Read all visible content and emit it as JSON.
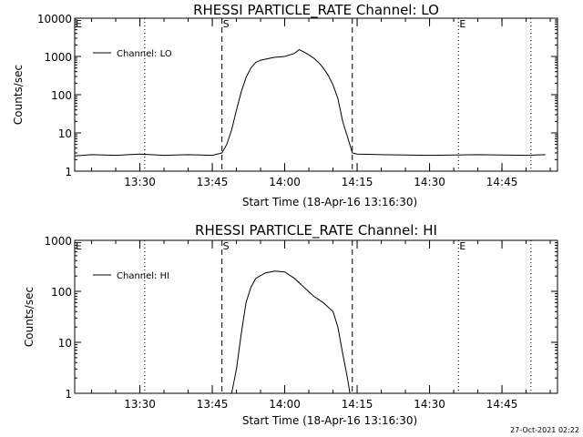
{
  "timestamp": "27-Oct-2021 02:22",
  "chart_data": [
    {
      "type": "line",
      "title": "RHESSI PARTICLE_RATE Channel: LO",
      "xlabel": "Start Time (18-Apr-16 13:16:30)",
      "ylabel": "Counts/sec",
      "legend": "Channel: LO",
      "legend_position": "top-left",
      "yscale": "log",
      "ylim": [
        1,
        10000
      ],
      "xlim": [
        "13:16:30",
        "14:56:30"
      ],
      "x_ticks": [
        {
          "t": "13:30",
          "label": "13:30"
        },
        {
          "t": "13:45",
          "label": "13:45"
        },
        {
          "t": "14:00",
          "label": "14:00"
        },
        {
          "t": "14:15",
          "label": "14:15"
        },
        {
          "t": "14:30",
          "label": "14:30"
        },
        {
          "t": "14:45",
          "label": "14:45"
        }
      ],
      "y_ticks": [
        {
          "v": 1,
          "label": "1"
        },
        {
          "v": 10,
          "label": "10"
        },
        {
          "v": 100,
          "label": "100"
        },
        {
          "v": 1000,
          "label": "1000"
        },
        {
          "v": 10000,
          "label": "10000"
        }
      ],
      "vlines": [
        {
          "t": "13:16:30",
          "style": "dotted",
          "label": "E"
        },
        {
          "t": "13:31:00",
          "style": "dotted",
          "label": ""
        },
        {
          "t": "13:47:00",
          "style": "dashed",
          "label": "S"
        },
        {
          "t": "14:14:00",
          "style": "dashed",
          "label": ""
        },
        {
          "t": "14:36:00",
          "style": "dotted",
          "label": "E"
        },
        {
          "t": "14:51:00",
          "style": "dotted",
          "label": ""
        }
      ],
      "series": [
        {
          "name": "Channel: LO",
          "times": [
            "13:16:30",
            "13:20",
            "13:25",
            "13:30",
            "13:35",
            "13:40",
            "13:45",
            "13:47",
            "13:48",
            "13:49",
            "13:50",
            "13:51",
            "13:52",
            "13:53",
            "13:54",
            "13:55",
            "13:56",
            "13:57",
            "13:58",
            "14:00",
            "14:02",
            "14:03",
            "14:04",
            "14:05",
            "14:06",
            "14:07",
            "14:08",
            "14:09",
            "14:10",
            "14:11",
            "14:12",
            "14:13",
            "14:14",
            "14:15",
            "14:20",
            "14:30",
            "14:40",
            "14:50",
            "14:54"
          ],
          "values": [
            2.5,
            2.7,
            2.6,
            2.8,
            2.6,
            2.7,
            2.6,
            3,
            5,
            12,
            40,
            120,
            280,
            500,
            700,
            800,
            850,
            900,
            950,
            1000,
            1200,
            1500,
            1300,
            1100,
            900,
            700,
            500,
            320,
            180,
            80,
            20,
            8,
            3,
            2.8,
            2.7,
            2.6,
            2.7,
            2.6,
            2.7
          ]
        }
      ]
    },
    {
      "type": "line",
      "title": "RHESSI PARTICLE_RATE Channel: HI",
      "xlabel": "Start Time (18-Apr-16 13:16:30)",
      "ylabel": "Counts/sec",
      "legend": "Channel: HI",
      "legend_position": "top-left",
      "yscale": "log",
      "ylim": [
        1,
        1000
      ],
      "xlim": [
        "13:16:30",
        "14:56:30"
      ],
      "x_ticks": [
        {
          "t": "13:30",
          "label": "13:30"
        },
        {
          "t": "13:45",
          "label": "13:45"
        },
        {
          "t": "14:00",
          "label": "14:00"
        },
        {
          "t": "14:15",
          "label": "14:15"
        },
        {
          "t": "14:30",
          "label": "14:30"
        },
        {
          "t": "14:45",
          "label": "14:45"
        }
      ],
      "y_ticks": [
        {
          "v": 1,
          "label": "1"
        },
        {
          "v": 10,
          "label": "10"
        },
        {
          "v": 100,
          "label": "100"
        },
        {
          "v": 1000,
          "label": "1000"
        }
      ],
      "vlines": [
        {
          "t": "13:16:30",
          "style": "dotted",
          "label": "E"
        },
        {
          "t": "13:31:00",
          "style": "dotted",
          "label": ""
        },
        {
          "t": "13:47:00",
          "style": "dashed",
          "label": "S"
        },
        {
          "t": "14:14:00",
          "style": "dashed",
          "label": ""
        },
        {
          "t": "14:36:00",
          "style": "dotted",
          "label": "E"
        },
        {
          "t": "14:51:00",
          "style": "dotted",
          "label": ""
        }
      ],
      "series": [
        {
          "name": "Channel: HI",
          "times": [
            "13:49",
            "13:50",
            "13:51",
            "13:52",
            "13:53",
            "13:54",
            "13:56",
            "13:58",
            "14:00",
            "14:02",
            "14:04",
            "14:06",
            "14:08",
            "14:10",
            "14:11",
            "14:12",
            "14:13",
            "14:13:30"
          ],
          "values": [
            1,
            3,
            15,
            60,
            120,
            180,
            230,
            250,
            240,
            180,
            120,
            80,
            60,
            40,
            20,
            6,
            2,
            1
          ]
        }
      ]
    }
  ]
}
